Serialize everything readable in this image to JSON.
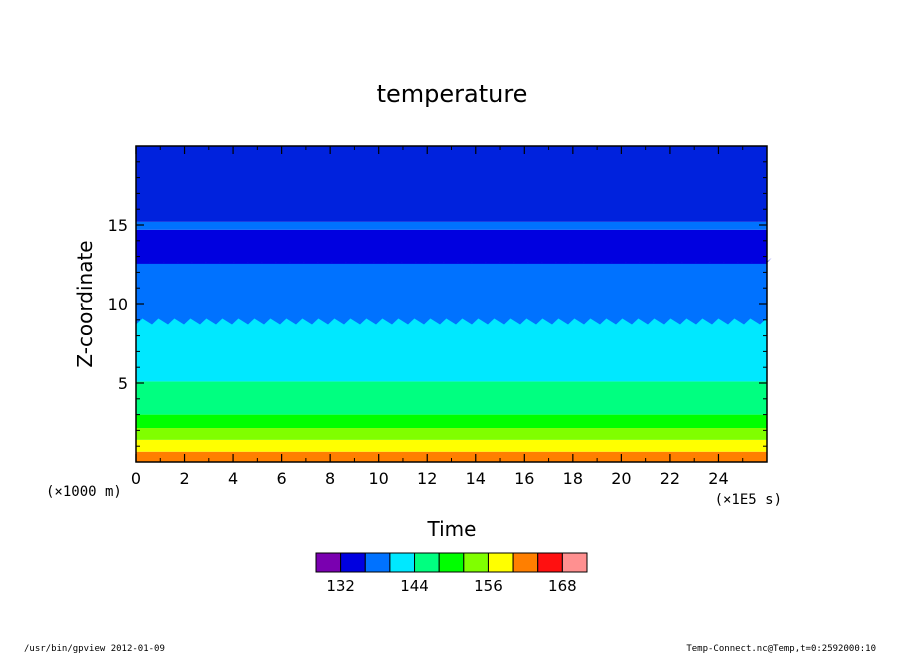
{
  "chart_data": {
    "type": "contour",
    "title": "temperature",
    "xlabel": "Time",
    "ylabel": "Z-coordinate",
    "x_unit": "(×1E5 s)",
    "y_unit": "(×1000 m)",
    "xlim": [
      0,
      26
    ],
    "ylim": [
      0,
      20
    ],
    "x_ticks": [
      0,
      2,
      4,
      6,
      8,
      10,
      12,
      14,
      16,
      18,
      20,
      22,
      24
    ],
    "y_ticks": [
      5,
      10,
      15
    ],
    "grid": false,
    "bands": [
      {
        "z_top": 0.65,
        "color": "#ff7f00"
      },
      {
        "z_top": 1.4,
        "color": "#ffff00"
      },
      {
        "z_top": 2.15,
        "color": "#80ff00"
      },
      {
        "z_top": 3.0,
        "color": "#00ff00"
      },
      {
        "z_top": 5.1,
        "color": "#00ff80"
      },
      {
        "z_top": 8.7,
        "color": "#00e8ff"
      },
      {
        "z_top": 12.6,
        "color": "#0072ff"
      },
      {
        "z_top": 14.7,
        "color": "#0000e0"
      },
      {
        "z_top": 15.2,
        "color": "#0072ff"
      },
      {
        "z_top": 20.0,
        "color": "#0022dd"
      }
    ],
    "colorbar": {
      "colors": [
        "#7a00b0",
        "#0000e0",
        "#0072ff",
        "#00e8ff",
        "#00ff80",
        "#00ff00",
        "#80ff00",
        "#ffff00",
        "#ff7f00",
        "#ff1010",
        "#ff9090"
      ],
      "labels": [
        "132",
        "144",
        "156",
        "168"
      ]
    }
  },
  "footer": {
    "left": "/usr/bin/gpview   2012-01-09",
    "right": "Temp-Connect.nc@Temp,t=0:2592000:10"
  }
}
